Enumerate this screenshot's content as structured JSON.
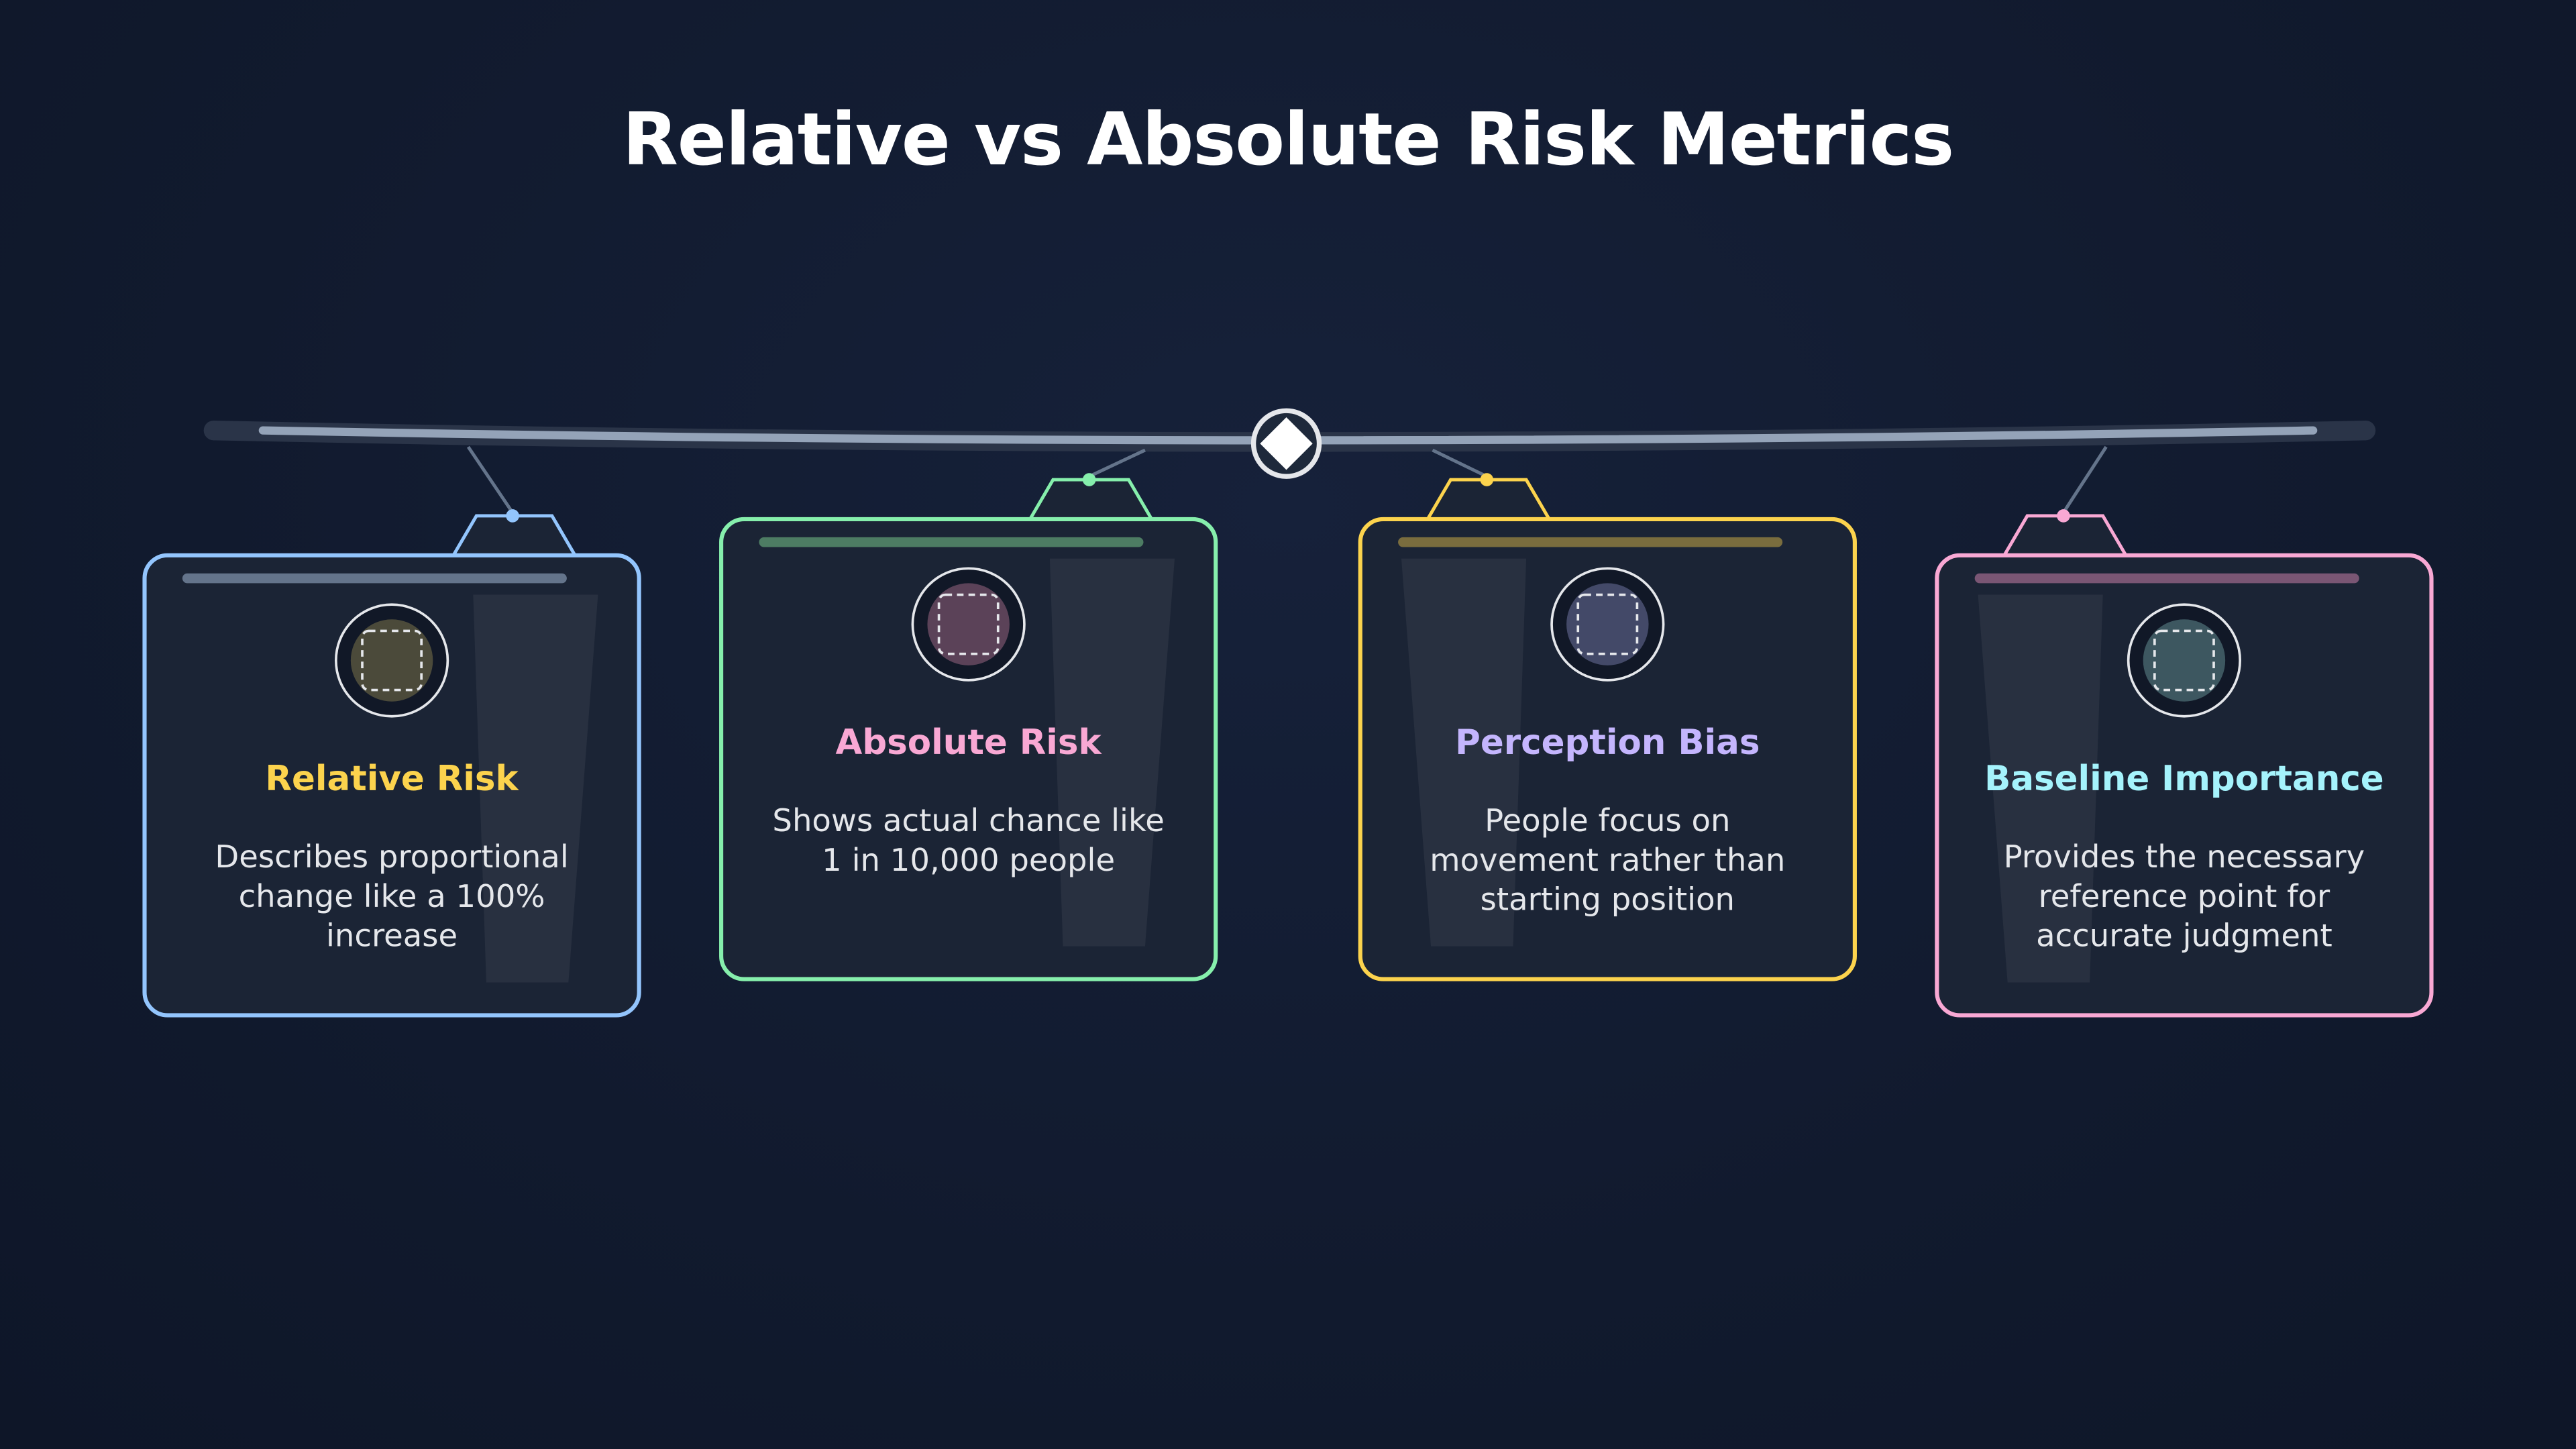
{
  "title": "Relative vs Absolute Risk Metrics",
  "cards": [
    {
      "title": "Relative Risk",
      "description": "Describes proportional change like a 100% increase"
    },
    {
      "title": "Absolute Risk",
      "description": "Shows actual chance like 1 in 10,000 people"
    },
    {
      "title": "Perception Bias",
      "description": "People focus on movement rather than starting position"
    },
    {
      "title": "Baseline Importance",
      "description": "Provides the necessary reference point for accurate judgment"
    }
  ]
}
